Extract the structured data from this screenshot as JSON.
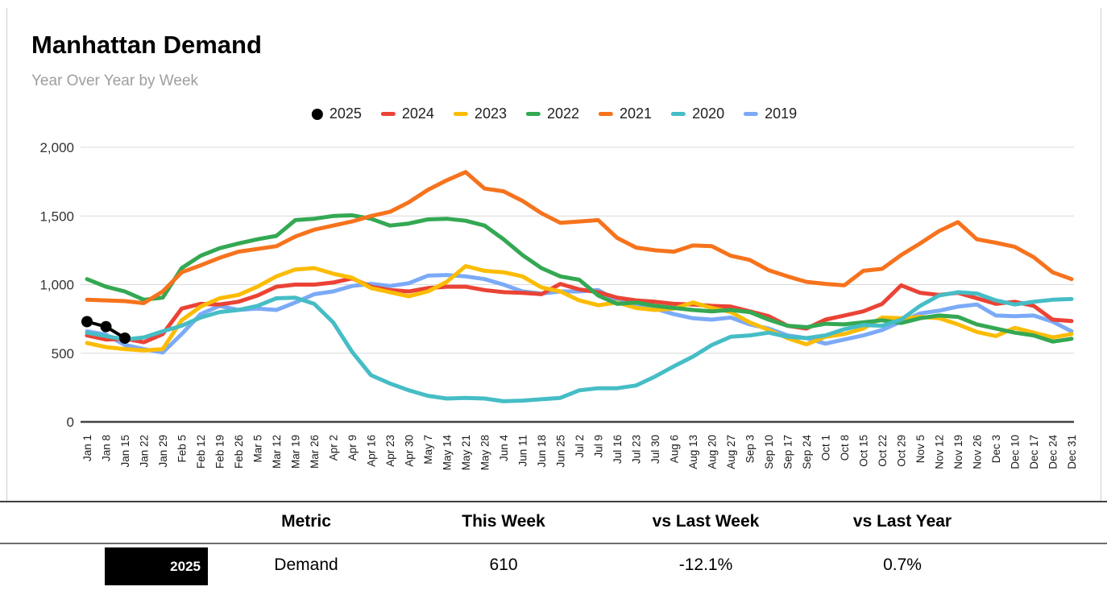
{
  "header": {
    "title": "Manhattan Demand",
    "subtitle": "Year Over Year by Week"
  },
  "chart_data": {
    "type": "line",
    "title": "Manhattan Demand",
    "subtitle": "Year Over Year by Week",
    "legend_position": "top",
    "grid": true,
    "ylim": [
      0,
      2000
    ],
    "y_ticks": [
      {
        "v": 0,
        "label": "0"
      },
      {
        "v": 500,
        "label": "500"
      },
      {
        "v": 1000,
        "label": "1,000"
      },
      {
        "v": 1500,
        "label": "1,500"
      },
      {
        "v": 2000,
        "label": "2,000"
      }
    ],
    "categories": [
      "Jan 1",
      "Jan 8",
      "Jan 15",
      "Jan 22",
      "Jan 29",
      "Feb 5",
      "Feb 12",
      "Feb 19",
      "Feb 26",
      "Mar 5",
      "Mar 12",
      "Mar 19",
      "Mar 26",
      "Apr 2",
      "Apr 9",
      "Apr 16",
      "Apr 23",
      "Apr 30",
      "May 7",
      "May 14",
      "May 21",
      "May 28",
      "Jun 4",
      "Jun 11",
      "Jun 18",
      "Jun 25",
      "Jul 2",
      "Jul 9",
      "Jul 16",
      "Jul 23",
      "Jul 30",
      "Aug 6",
      "Aug 13",
      "Aug 20",
      "Aug 27",
      "Sep 3",
      "Sep 10",
      "Sep 17",
      "Sep 24",
      "Oct 1",
      "Oct 8",
      "Oct 15",
      "Oct 22",
      "Oct 29",
      "Nov 5",
      "Nov 12",
      "Nov 19",
      "Nov 26",
      "Dec 3",
      "Dec 10",
      "Dec 17",
      "Dec 24",
      "Dec 31"
    ],
    "series": [
      {
        "name": "2019",
        "color": "#7baaf7",
        "marker": "none",
        "values": [
          660,
          635,
          560,
          530,
          505,
          640,
          785,
          845,
          815,
          825,
          815,
          870,
          930,
          950,
          990,
          1005,
          990,
          1010,
          1065,
          1070,
          1060,
          1040,
          1000,
          950,
          935,
          950,
          950,
          960,
          885,
          860,
          825,
          785,
          755,
          745,
          760,
          710,
          680,
          630,
          610,
          570,
          600,
          630,
          670,
          730,
          790,
          810,
          840,
          855,
          775,
          770,
          775,
          730,
          660
        ]
      },
      {
        "name": "2024",
        "color": "#ea4335",
        "marker": "none",
        "values": [
          630,
          600,
          606,
          580,
          640,
          825,
          860,
          855,
          875,
          920,
          985,
          1000,
          1000,
          1015,
          1045,
          985,
          960,
          950,
          975,
          985,
          985,
          960,
          945,
          940,
          930,
          1005,
          965,
          945,
          905,
          885,
          875,
          860,
          855,
          845,
          840,
          805,
          770,
          700,
          680,
          745,
          775,
          805,
          860,
          995,
          940,
          925,
          940,
          900,
          860,
          875,
          845,
          745,
          735
        ]
      },
      {
        "name": "2023",
        "color": "#fbbc04",
        "marker": "none",
        "values": [
          575,
          545,
          530,
          520,
          530,
          740,
          840,
          900,
          925,
          985,
          1060,
          1110,
          1120,
          1080,
          1050,
          975,
          945,
          915,
          950,
          1020,
          1135,
          1100,
          1090,
          1060,
          980,
          950,
          885,
          850,
          870,
          830,
          815,
          825,
          870,
          830,
          800,
          725,
          670,
          610,
          565,
          620,
          640,
          680,
          760,
          755,
          765,
          755,
          710,
          655,
          625,
          685,
          650,
          615,
          640
        ]
      },
      {
        "name": "2022",
        "color": "#34a853",
        "marker": "none",
        "values": [
          1040,
          985,
          950,
          890,
          905,
          1120,
          1210,
          1265,
          1300,
          1330,
          1355,
          1470,
          1480,
          1500,
          1505,
          1480,
          1430,
          1445,
          1475,
          1480,
          1465,
          1430,
          1330,
          1215,
          1120,
          1060,
          1035,
          920,
          860,
          870,
          845,
          830,
          815,
          805,
          815,
          800,
          745,
          700,
          690,
          715,
          710,
          725,
          740,
          720,
          755,
          775,
          765,
          710,
          680,
          650,
          630,
          585,
          605
        ]
      },
      {
        "name": "2021",
        "color": "#f6731d",
        "marker": "none",
        "values": [
          890,
          885,
          880,
          865,
          950,
          1090,
          1140,
          1195,
          1240,
          1260,
          1280,
          1350,
          1400,
          1430,
          1460,
          1500,
          1530,
          1600,
          1690,
          1760,
          1820,
          1700,
          1680,
          1610,
          1520,
          1450,
          1460,
          1470,
          1340,
          1270,
          1250,
          1240,
          1285,
          1280,
          1210,
          1180,
          1105,
          1060,
          1020,
          1005,
          995,
          1100,
          1115,
          1215,
          1300,
          1390,
          1455,
          1330,
          1305,
          1275,
          1200,
          1090,
          1040
        ]
      },
      {
        "name": "2020",
        "color": "#46bdc6",
        "marker": "none",
        "values": [
          650,
          625,
          600,
          615,
          660,
          700,
          760,
          800,
          815,
          845,
          900,
          905,
          860,
          725,
          510,
          340,
          280,
          230,
          190,
          170,
          175,
          170,
          150,
          155,
          165,
          175,
          230,
          245,
          245,
          265,
          330,
          405,
          475,
          560,
          620,
          630,
          650,
          620,
          610,
          630,
          675,
          705,
          700,
          745,
          845,
          920,
          945,
          935,
          885,
          855,
          875,
          890,
          895
        ]
      },
      {
        "name": "2025",
        "color": "#000000",
        "marker": "circle",
        "values": [
          730,
          694,
          610
        ]
      }
    ],
    "legend_order": [
      "2025",
      "2024",
      "2023",
      "2022",
      "2021",
      "2020",
      "2019"
    ]
  },
  "table": {
    "headers": [
      "Metric",
      "This Week",
      "vs Last Week",
      "vs Last Year"
    ],
    "row": {
      "year": "2025",
      "metric": "Demand",
      "this_week": "610",
      "vs_last_week": "-12.1%",
      "vs_last_year": "0.7%"
    }
  },
  "style": {
    "grid_color": "#d9d9d9",
    "axis_color": "#424242",
    "tick_label_color": "#333333",
    "x_label_color": "#1b1b1b"
  }
}
